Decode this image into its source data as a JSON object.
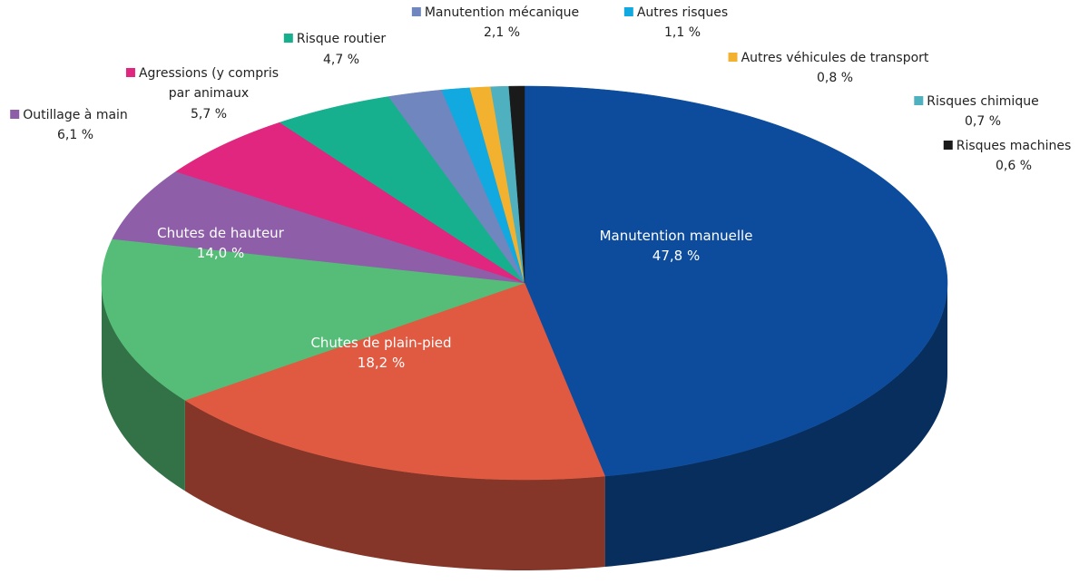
{
  "chart_data": {
    "type": "pie3d",
    "categories": [
      "Manutention manuelle",
      "Chutes de plain-pied",
      "Chutes de hauteur",
      "Outillage à main",
      "Agressions (y compris par animaux",
      "Risque routier",
      "Manutention mécanique",
      "Autres risques",
      "Autres véhicules de transport",
      "Risques chimique",
      "Risques machines"
    ],
    "values": [
      47.8,
      18.2,
      14.0,
      6.1,
      5.7,
      4.7,
      2.1,
      1.1,
      0.8,
      0.7,
      0.6
    ],
    "value_labels": [
      "47,8 %",
      "18,2 %",
      "14,0 %",
      "6,1 %",
      "5,7 %",
      "4,7 %",
      "2,1 %",
      "1,1 %",
      "0,8 %",
      "0,7 %",
      "0,6 %"
    ],
    "colors": [
      "#0d4c9c",
      "#e05a42",
      "#55bd77",
      "#8e5ea9",
      "#e0267e",
      "#16b08e",
      "#6f86be",
      "#12a9e0",
      "#f2b12f",
      "#4fb0c0",
      "#1a1a1a"
    ]
  }
}
